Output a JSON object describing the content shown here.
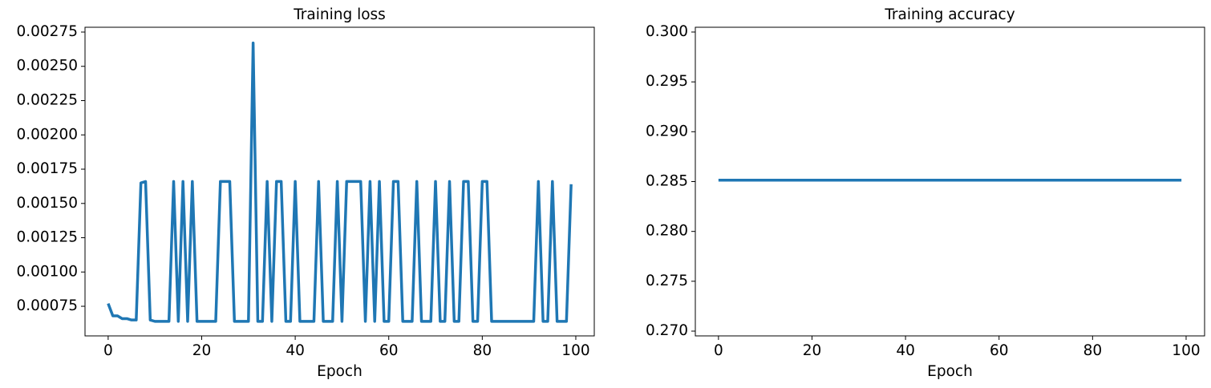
{
  "chart_data": [
    {
      "type": "line",
      "title": "Training loss",
      "x_label": "Epoch",
      "color": "#1f77b4",
      "x": [
        0,
        1,
        2,
        3,
        4,
        5,
        6,
        7,
        8,
        9,
        10,
        11,
        12,
        13,
        14,
        15,
        16,
        17,
        18,
        19,
        20,
        21,
        22,
        23,
        24,
        25,
        26,
        27,
        28,
        29,
        30,
        31,
        32,
        33,
        34,
        35,
        36,
        37,
        38,
        39,
        40,
        41,
        42,
        43,
        44,
        45,
        46,
        47,
        48,
        49,
        50,
        51,
        52,
        53,
        54,
        55,
        56,
        57,
        58,
        59,
        60,
        61,
        62,
        63,
        64,
        65,
        66,
        67,
        68,
        69,
        70,
        71,
        72,
        73,
        74,
        75,
        76,
        77,
        78,
        79,
        80,
        81,
        82,
        83,
        84,
        85,
        86,
        87,
        88,
        89,
        90,
        91,
        92,
        93,
        94,
        95,
        96,
        97,
        98,
        99
      ],
      "values": [
        0.00077,
        0.00068,
        0.00068,
        0.00066,
        0.00066,
        0.00065,
        0.00065,
        0.00165,
        0.00166,
        0.00065,
        0.00064,
        0.00064,
        0.00064,
        0.00064,
        0.00166,
        0.00064,
        0.00166,
        0.00064,
        0.00166,
        0.00064,
        0.00064,
        0.00064,
        0.00064,
        0.00064,
        0.00166,
        0.00166,
        0.00166,
        0.00064,
        0.00064,
        0.00064,
        0.00064,
        0.00267,
        0.00064,
        0.00064,
        0.00166,
        0.00064,
        0.00166,
        0.00166,
        0.00064,
        0.00064,
        0.00166,
        0.00064,
        0.00064,
        0.00064,
        0.00064,
        0.00166,
        0.00064,
        0.00064,
        0.00064,
        0.00166,
        0.00064,
        0.00166,
        0.00166,
        0.00166,
        0.00166,
        0.00064,
        0.00166,
        0.00064,
        0.00166,
        0.00064,
        0.00064,
        0.00166,
        0.00166,
        0.00064,
        0.00064,
        0.00064,
        0.00166,
        0.00064,
        0.00064,
        0.00064,
        0.00166,
        0.00064,
        0.00064,
        0.00166,
        0.00064,
        0.00064,
        0.00166,
        0.00166,
        0.00064,
        0.00064,
        0.00166,
        0.00166,
        0.00064,
        0.00064,
        0.00064,
        0.00064,
        0.00064,
        0.00064,
        0.00064,
        0.00064,
        0.00064,
        0.00064,
        0.00166,
        0.00064,
        0.00064,
        0.00166,
        0.00064,
        0.00064,
        0.00064,
        0.00164
      ],
      "xlim": [
        -4.95,
        103.95
      ],
      "xticks": [
        0,
        20,
        40,
        60,
        80,
        100
      ],
      "ylim": [
        0.000534,
        0.002785
      ],
      "yticks": [
        0.00075,
        {
          "value": 0.001,
          "label": "0.00100"
        },
        0.00125,
        {
          "value": 0.0015,
          "label": "0.00150"
        },
        0.00175,
        {
          "value": 0.002,
          "label": "0.00200"
        },
        0.00225,
        {
          "value": 0.0025,
          "label": "0.00250"
        },
        0.00275
      ]
    },
    {
      "type": "line",
      "title": "Training accuracy",
      "x_label": "Epoch",
      "color": "#1f77b4",
      "x": [
        0,
        1,
        2,
        3,
        4,
        5,
        6,
        7,
        8,
        9,
        10,
        11,
        12,
        13,
        14,
        15,
        16,
        17,
        18,
        19,
        20,
        21,
        22,
        23,
        24,
        25,
        26,
        27,
        28,
        29,
        30,
        31,
        32,
        33,
        34,
        35,
        36,
        37,
        38,
        39,
        40,
        41,
        42,
        43,
        44,
        45,
        46,
        47,
        48,
        49,
        50,
        51,
        52,
        53,
        54,
        55,
        56,
        57,
        58,
        59,
        60,
        61,
        62,
        63,
        64,
        65,
        66,
        67,
        68,
        69,
        70,
        71,
        72,
        73,
        74,
        75,
        76,
        77,
        78,
        79,
        80,
        81,
        82,
        83,
        84,
        85,
        86,
        87,
        88,
        89,
        90,
        91,
        92,
        93,
        94,
        95,
        96,
        97,
        98,
        99
      ],
      "values": [
        0.28514,
        0.28514,
        0.28514,
        0.28514,
        0.28514,
        0.28514,
        0.28514,
        0.28514,
        0.28514,
        0.28514,
        0.28514,
        0.28514,
        0.28514,
        0.28514,
        0.28514,
        0.28514,
        0.28514,
        0.28514,
        0.28514,
        0.28514,
        0.28514,
        0.28514,
        0.28514,
        0.28514,
        0.28514,
        0.28514,
        0.28514,
        0.28514,
        0.28514,
        0.28514,
        0.28514,
        0.28514,
        0.28514,
        0.28514,
        0.28514,
        0.28514,
        0.28514,
        0.28514,
        0.28514,
        0.28514,
        0.28514,
        0.28514,
        0.28514,
        0.28514,
        0.28514,
        0.28514,
        0.28514,
        0.28514,
        0.28514,
        0.28514,
        0.28514,
        0.28514,
        0.28514,
        0.28514,
        0.28514,
        0.28514,
        0.28514,
        0.28514,
        0.28514,
        0.28514,
        0.28514,
        0.28514,
        0.28514,
        0.28514,
        0.28514,
        0.28514,
        0.28514,
        0.28514,
        0.28514,
        0.28514,
        0.28514,
        0.28514,
        0.28514,
        0.28514,
        0.28514,
        0.28514,
        0.28514,
        0.28514,
        0.28514,
        0.28514,
        0.28514,
        0.28514,
        0.28514,
        0.28514,
        0.28514,
        0.28514,
        0.28514,
        0.28514,
        0.28514,
        0.28514,
        0.28514,
        0.28514,
        0.28514,
        0.28514,
        0.28514,
        0.28514,
        0.28514,
        0.28514,
        0.28514,
        0.28514
      ],
      "xlim": [
        -4.95,
        103.95
      ],
      "xticks": [
        0,
        20,
        40,
        60,
        80,
        100
      ],
      "ylim": [
        0.26952,
        0.30048
      ],
      "yticks": [
        {
          "value": 0.27,
          "label": "0.270"
        },
        0.275,
        {
          "value": 0.28,
          "label": "0.280"
        },
        0.285,
        {
          "value": 0.29,
          "label": "0.290"
        },
        0.295,
        {
          "value": 0.3,
          "label": "0.300"
        }
      ]
    }
  ]
}
